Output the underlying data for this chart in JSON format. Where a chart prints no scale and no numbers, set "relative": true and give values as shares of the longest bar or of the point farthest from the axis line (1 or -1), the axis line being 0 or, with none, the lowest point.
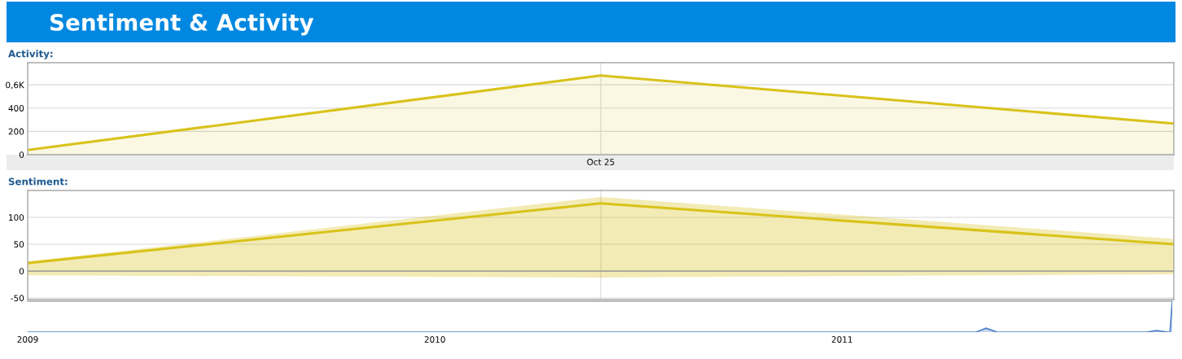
{
  "chart_data": [
    {
      "type": "area",
      "title": "Sentiment & Activity",
      "subtitle": "Activity:",
      "categories": [
        null,
        "Oct 25",
        null
      ],
      "grid": true,
      "ylim": [
        0,
        790
      ],
      "yticks": [
        0,
        200,
        400,
        {
          "value": 600,
          "label": "0,6K"
        }
      ],
      "series": [
        {
          "color": "#d9c21a",
          "values": [
            40,
            680,
            267
          ]
        }
      ]
    },
    {
      "type": "line",
      "title": "Sentiment:",
      "categories": [
        null,
        null,
        null
      ],
      "grid": true,
      "ylim": [
        -53,
        150
      ],
      "yticks": [
        -50,
        0,
        50,
        100
      ],
      "series": [
        {
          "color": "#d9c21a",
          "values": [
            15,
            126,
            50
          ],
          "lower": [
            -8,
            -12,
            -6
          ],
          "upper": [
            18,
            138,
            60
          ]
        }
      ]
    },
    {
      "type": "area",
      "relative": true,
      "tick_labels": "x",
      "x": [
        "2009-01-01",
        "2010-06-01",
        "2011-05-01",
        "2011-05-10",
        "2011-05-20",
        "2011-10-01",
        "2011-10-10",
        "2011-10-20",
        "2011-10-22",
        "2011-10-24"
      ],
      "xlim": [
        "2009-01-01",
        "2011-10-24"
      ],
      "xticks": [
        {
          "value": "2009-01-01",
          "label": "2009"
        },
        {
          "value": "2010-01-01",
          "label": "2010"
        },
        {
          "value": "2011-01-01",
          "label": "2011"
        }
      ],
      "series": [
        {
          "color": "#4a7fc8",
          "values": [
            0,
            0,
            0,
            0.13,
            0,
            0,
            0.05,
            0,
            0,
            1
          ]
        }
      ]
    }
  ]
}
